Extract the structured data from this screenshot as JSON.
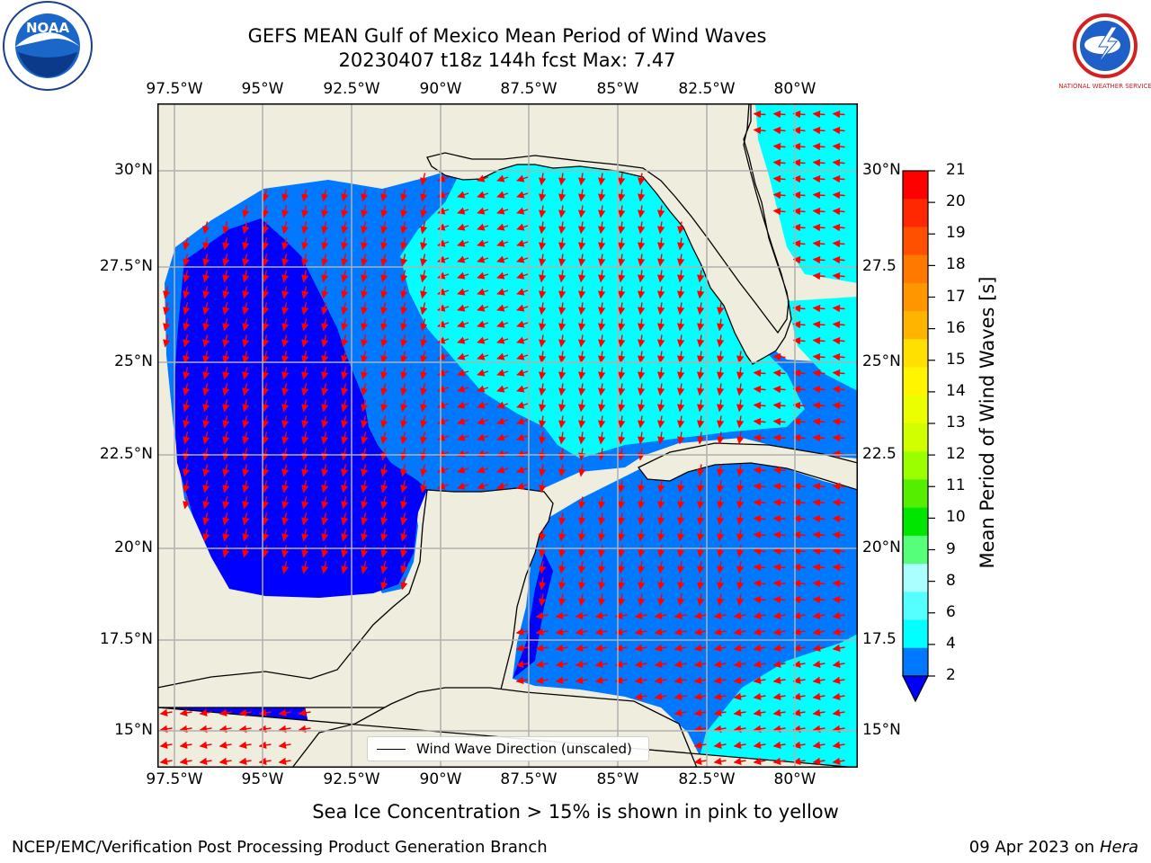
{
  "title": {
    "line1": "GEFS MEAN Gulf of Mexico Mean Period of Wind Waves",
    "line2": "20230407 t18z 144h fcst   Max: 7.47"
  },
  "map": {
    "lon_ticks": [
      "97.5°W",
      "95°W",
      "92.5°W",
      "90°W",
      "87.5°W",
      "85°W",
      "82.5°W",
      "80°W"
    ],
    "lat_ticks_left": [
      "30°N",
      "27.5°N",
      "25°N",
      "22.5°N",
      "20°N",
      "17.5°N",
      "15°N"
    ],
    "lat_ticks_right": [
      "30°N",
      "27.5",
      "25°N",
      "22.5",
      "20°N",
      "17.5",
      "15°N"
    ],
    "colors": {
      "land": "#efedde",
      "ocean_low": "#0000ff",
      "ocean_mid": "#0078ff",
      "ocean_high": "#00ffff",
      "arrow": "#ff0000",
      "grid": "#b0b0b0"
    }
  },
  "legend": {
    "label": "Wind Wave Direction (unscaled)"
  },
  "colorbar": {
    "title": "Mean Period of Wind Waves [s]",
    "labels": [
      "21",
      "20",
      "19",
      "18",
      "17",
      "16",
      "15",
      "14",
      "13",
      "12",
      "11",
      "10",
      "9",
      "8",
      "6",
      "4",
      "2"
    ],
    "colors": [
      "#ff0000",
      "#ff2800",
      "#ff5000",
      "#ff7800",
      "#ff9600",
      "#ffb400",
      "#ffe000",
      "#fff500",
      "#ecff00",
      "#d2ff00",
      "#9bff00",
      "#55ee00",
      "#00e600",
      "#55ff7a",
      "#aaffff",
      "#55ffff",
      "#00ffff",
      "#0078ff"
    ],
    "extend_color": "#0000ff"
  },
  "logos": {
    "left": "NOAA",
    "right": "NATIONAL WEATHER SERVICE"
  },
  "footer": {
    "subtitle": "Sea Ice Concentration > 15% is shown in pink to yellow",
    "left": "NCEP/EMC/Verification Post Processing Product Generation Branch",
    "right_date": "09 Apr 2023 on ",
    "right_host": "Hera"
  }
}
